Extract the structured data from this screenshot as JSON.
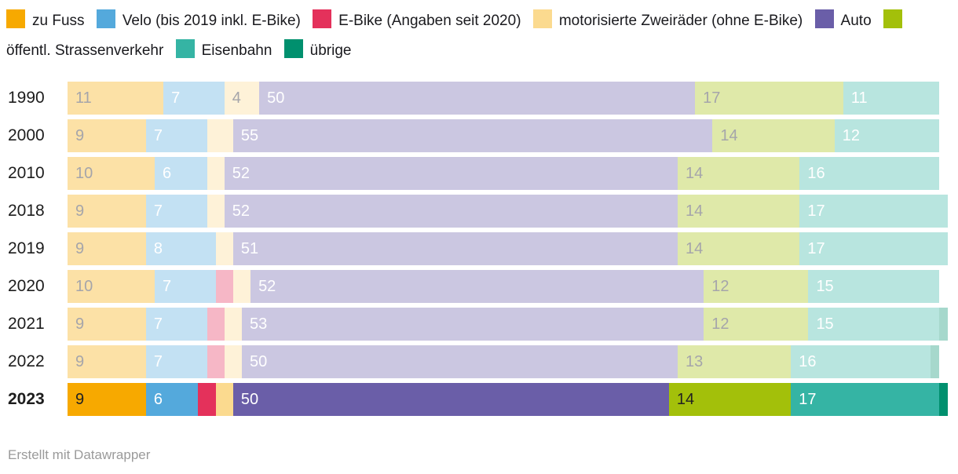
{
  "legend": {
    "items": [
      {
        "label": "zu Fuss",
        "color": "#f7a900"
      },
      {
        "label": "Velo (bis 2019 inkl. E-Bike)",
        "color": "#54a9dc"
      },
      {
        "label": "E-Bike (Angaben seit 2020)",
        "color": "#e4315b"
      },
      {
        "label": "motorisierte Zweiräder (ohne E-Bike)",
        "color": "#fbda8f"
      },
      {
        "label": "Auto",
        "color": "#6a5ea8"
      },
      {
        "label": "öffentl. Strassenverkehr",
        "color": "#a3c00a"
      },
      {
        "label": "Eisenbahn",
        "color": "#35b4a4"
      },
      {
        "label": "übrige",
        "color": "#00906e"
      }
    ]
  },
  "chart_data": {
    "type": "bar",
    "orientation": "horizontal",
    "stacked": true,
    "unit": "percent",
    "title": "",
    "xlabel": "",
    "ylabel": "",
    "categories": [
      "1990",
      "2000",
      "2010",
      "2018",
      "2019",
      "2020",
      "2021",
      "2022",
      "2023"
    ],
    "highlighted_category": "2023",
    "label_min_value": 4,
    "muted_alpha": 0.35,
    "series": [
      {
        "name": "zu Fuss",
        "color": "#f7a900",
        "label_style": "dark",
        "values": [
          11,
          9,
          10,
          9,
          9,
          10,
          9,
          9,
          9
        ]
      },
      {
        "name": "Velo (bis 2019 inkl. E-Bike)",
        "color": "#54a9dc",
        "label_style": "light",
        "values": [
          7,
          7,
          6,
          7,
          8,
          7,
          7,
          7,
          6
        ]
      },
      {
        "name": "E-Bike (Angaben seit 2020)",
        "color": "#e4315b",
        "label_style": "none",
        "values": [
          0,
          0,
          0,
          0,
          0,
          2,
          2,
          2,
          2
        ]
      },
      {
        "name": "motorisierte Zweiräder (ohne E-Bike)",
        "color": "#fbda8f",
        "label_style": "dark",
        "values": [
          4,
          3,
          2,
          2,
          2,
          2,
          2,
          2,
          2
        ]
      },
      {
        "name": "Auto",
        "color": "#6a5ea8",
        "label_style": "light",
        "values": [
          50,
          55,
          52,
          52,
          51,
          52,
          53,
          50,
          50
        ]
      },
      {
        "name": "öffentl. Strassenverkehr",
        "color": "#a3c00a",
        "label_style": "dark",
        "values": [
          17,
          14,
          14,
          14,
          14,
          12,
          12,
          13,
          14
        ]
      },
      {
        "name": "Eisenbahn",
        "color": "#35b4a4",
        "label_style": "light",
        "values": [
          11,
          12,
          16,
          17,
          17,
          15,
          15,
          16,
          17
        ]
      },
      {
        "name": "übrige",
        "color": "#00906e",
        "label_style": "none",
        "values": [
          0,
          0,
          0,
          0,
          0,
          0,
          1,
          1,
          1
        ]
      }
    ]
  },
  "colors": {
    "label_dark_highlight": "#222222",
    "label_dark_muted": "#a5a5aa",
    "label_light": "#ffffff"
  },
  "footer": {
    "text": "Erstellt mit Datawrapper"
  }
}
